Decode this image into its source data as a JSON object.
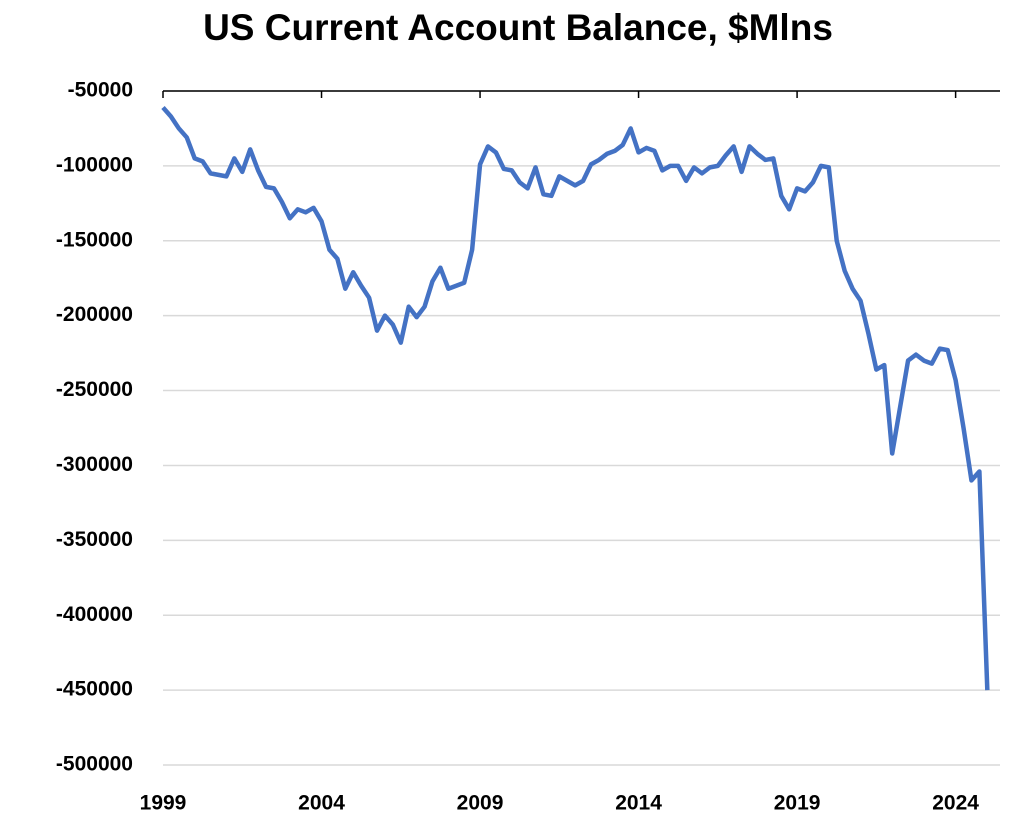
{
  "chart_data": {
    "type": "line",
    "title": "US Current Account Balance, $Mlns",
    "x": [
      1999,
      1999.25,
      1999.5,
      1999.75,
      2000,
      2000.25,
      2000.5,
      2000.75,
      2001,
      2001.25,
      2001.5,
      2001.75,
      2002,
      2002.25,
      2002.5,
      2002.75,
      2003,
      2003.25,
      2003.5,
      2003.75,
      2004,
      2004.25,
      2004.5,
      2004.75,
      2005,
      2005.25,
      2005.5,
      2005.75,
      2006,
      2006.25,
      2006.5,
      2006.75,
      2007,
      2007.25,
      2007.5,
      2007.75,
      2008,
      2008.25,
      2008.5,
      2008.75,
      2009,
      2009.25,
      2009.5,
      2009.75,
      2010,
      2010.25,
      2010.5,
      2010.75,
      2011,
      2011.25,
      2011.5,
      2011.75,
      2012,
      2012.25,
      2012.5,
      2012.75,
      2013,
      2013.25,
      2013.5,
      2013.75,
      2014,
      2014.25,
      2014.5,
      2014.75,
      2015,
      2015.25,
      2015.5,
      2015.75,
      2016,
      2016.25,
      2016.5,
      2016.75,
      2017,
      2017.25,
      2017.5,
      2017.75,
      2018,
      2018.25,
      2018.5,
      2018.75,
      2019,
      2019.25,
      2019.5,
      2019.75,
      2020,
      2020.25,
      2020.5,
      2020.75,
      2021,
      2021.25,
      2021.5,
      2021.75,
      2022,
      2022.25,
      2022.5,
      2022.75,
      2023,
      2023.25,
      2023.5,
      2023.75,
      2024,
      2024.25,
      2024.5,
      2024.75,
      2025
    ],
    "series": [
      {
        "name": "US Current Account Balance",
        "color": "#4472c4",
        "values": [
          -61000,
          -67000,
          -75000,
          -81000,
          -95000,
          -97000,
          -105000,
          -106000,
          -107000,
          -95000,
          -104000,
          -89000,
          -103000,
          -114000,
          -115000,
          -124000,
          -135000,
          -129000,
          -131000,
          -128000,
          -137000,
          -156000,
          -162000,
          -182000,
          -171000,
          -180000,
          -188000,
          -210000,
          -200000,
          -206000,
          -218000,
          -194000,
          -201000,
          -194000,
          -177000,
          -168000,
          -182000,
          -180000,
          -178000,
          -156000,
          -99000,
          -87000,
          -91000,
          -102000,
          -103000,
          -111000,
          -115000,
          -101000,
          -119000,
          -120000,
          -107000,
          -110000,
          -113000,
          -110000,
          -99000,
          -96000,
          -92000,
          -90000,
          -86000,
          -75000,
          -91000,
          -88000,
          -90000,
          -103000,
          -100000,
          -100000,
          -110000,
          -101000,
          -105000,
          -101000,
          -100000,
          -93000,
          -87000,
          -104000,
          -87000,
          -92000,
          -96000,
          -95000,
          -120000,
          -129000,
          -115000,
          -117000,
          -111000,
          -100000,
          -101000,
          -150000,
          -170000,
          -182000,
          -190000,
          -212000,
          -236000,
          -233000,
          -292000,
          -261000,
          -230000,
          -226000,
          -230000,
          -232000,
          -222000,
          -223000,
          -243000,
          -275000,
          -310000,
          -304000,
          -450000
        ]
      }
    ],
    "xlim": [
      1999,
      2025.4
    ],
    "xticks": [
      1999,
      2004,
      2009,
      2014,
      2019,
      2024
    ],
    "ylim": [
      -500000,
      -50000
    ],
    "yticks": [
      -50000,
      -100000,
      -150000,
      -200000,
      -250000,
      -300000,
      -350000,
      -400000,
      -450000,
      -500000
    ],
    "grid": true
  }
}
